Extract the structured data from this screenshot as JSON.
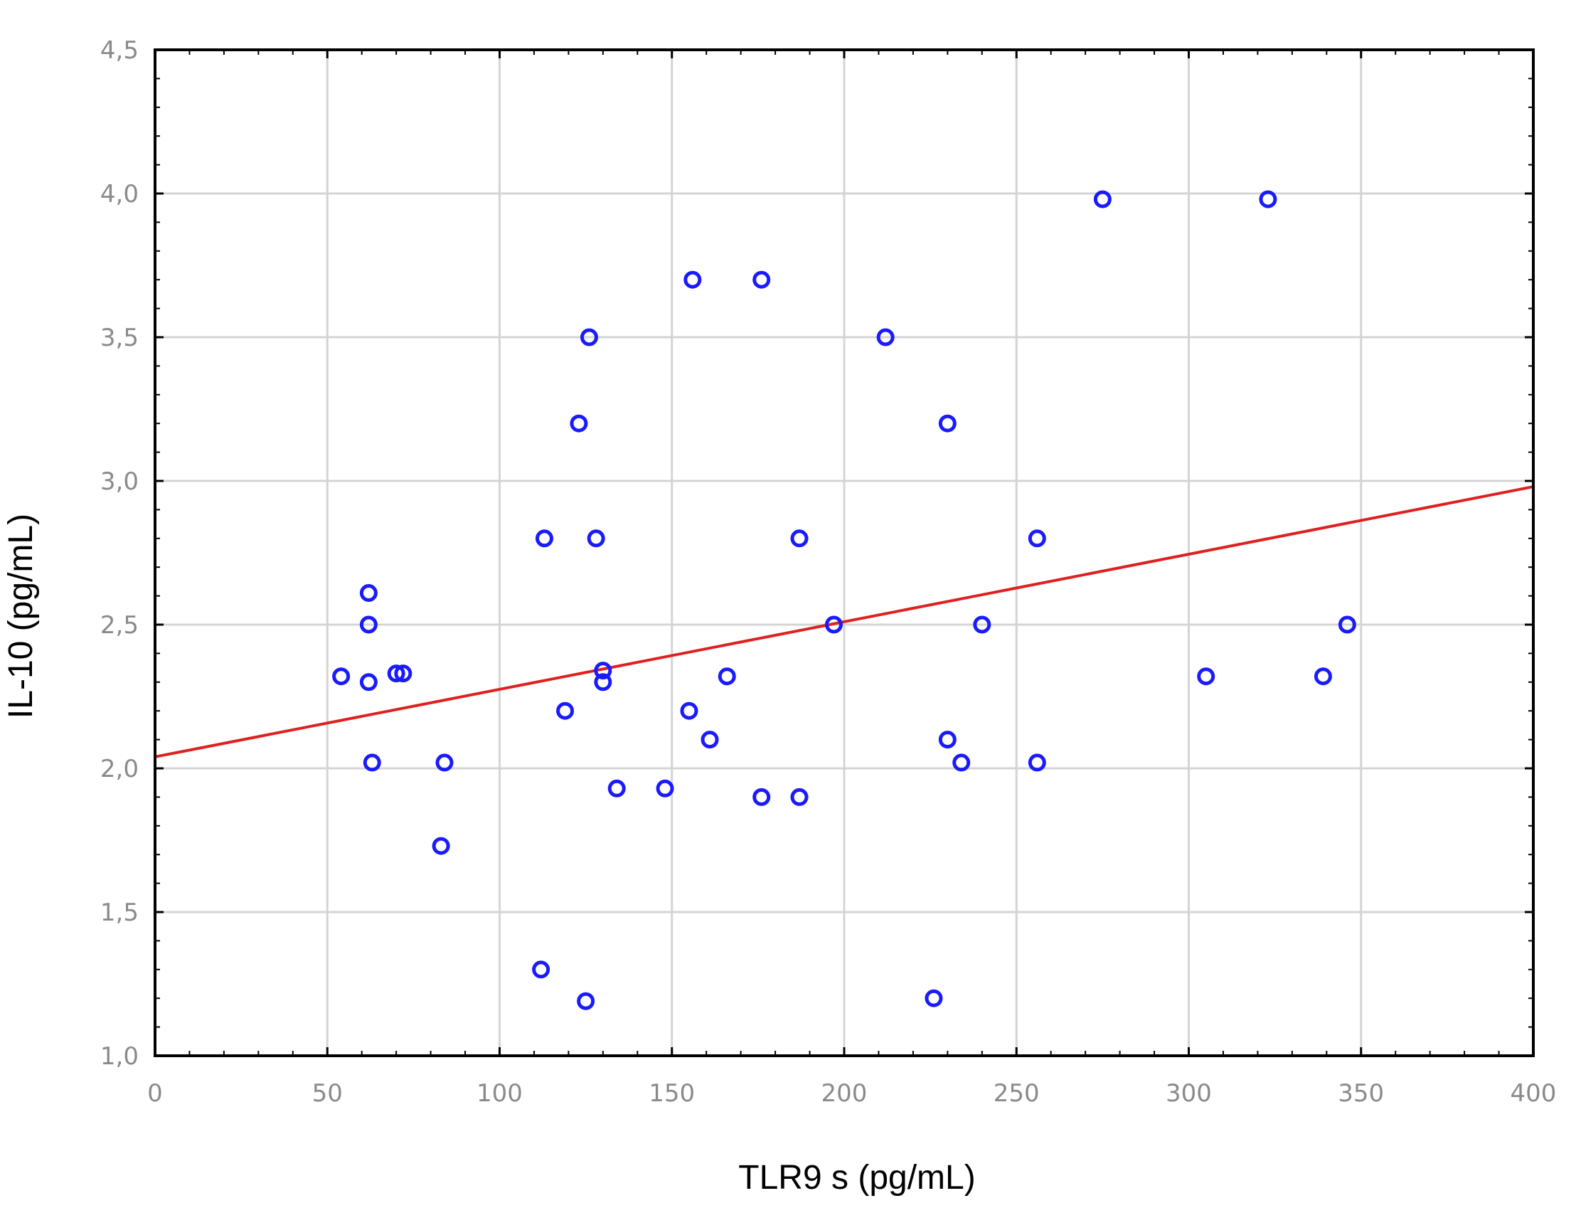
{
  "chart_data": {
    "type": "scatter",
    "xlabel": "TLR9 s (pg/mL)",
    "ylabel": "IL-10 (pg/mL)",
    "xlim": [
      0,
      400
    ],
    "ylim": [
      1.0,
      4.5
    ],
    "x_ticks": [
      0,
      50,
      100,
      150,
      200,
      250,
      300,
      350,
      400
    ],
    "x_tick_labels": [
      "0",
      "50",
      "100",
      "150",
      "200",
      "250",
      "300",
      "350",
      "400"
    ],
    "y_ticks": [
      1.0,
      1.5,
      2.0,
      2.5,
      3.0,
      3.5,
      4.0,
      4.5
    ],
    "y_tick_labels": [
      "1,0",
      "1,5",
      "2,0",
      "2,5",
      "3,0",
      "3,5",
      "4,0",
      "4,5"
    ],
    "grid": true,
    "marker_color": "#1a1aff",
    "line_color": "#e02020",
    "points": [
      {
        "x": 54,
        "y": 2.32
      },
      {
        "x": 62,
        "y": 2.61
      },
      {
        "x": 62,
        "y": 2.5
      },
      {
        "x": 62,
        "y": 2.3
      },
      {
        "x": 63,
        "y": 2.02
      },
      {
        "x": 70,
        "y": 2.33
      },
      {
        "x": 72,
        "y": 2.33
      },
      {
        "x": 83,
        "y": 1.73
      },
      {
        "x": 84,
        "y": 2.02
      },
      {
        "x": 112,
        "y": 1.3
      },
      {
        "x": 113,
        "y": 2.8
      },
      {
        "x": 119,
        "y": 2.2
      },
      {
        "x": 123,
        "y": 3.2
      },
      {
        "x": 125,
        "y": 1.19
      },
      {
        "x": 126,
        "y": 3.5
      },
      {
        "x": 128,
        "y": 2.8
      },
      {
        "x": 130,
        "y": 2.3
      },
      {
        "x": 130,
        "y": 2.34
      },
      {
        "x": 134,
        "y": 1.93
      },
      {
        "x": 148,
        "y": 1.93
      },
      {
        "x": 155,
        "y": 2.2
      },
      {
        "x": 156,
        "y": 3.7
      },
      {
        "x": 161,
        "y": 2.1
      },
      {
        "x": 166,
        "y": 2.32
      },
      {
        "x": 176,
        "y": 1.9
      },
      {
        "x": 176,
        "y": 3.7
      },
      {
        "x": 187,
        "y": 2.8
      },
      {
        "x": 187,
        "y": 1.9
      },
      {
        "x": 197,
        "y": 2.5
      },
      {
        "x": 212,
        "y": 3.5
      },
      {
        "x": 226,
        "y": 1.2
      },
      {
        "x": 230,
        "y": 3.2
      },
      {
        "x": 230,
        "y": 2.1
      },
      {
        "x": 234,
        "y": 2.02
      },
      {
        "x": 240,
        "y": 2.5
      },
      {
        "x": 256,
        "y": 2.8
      },
      {
        "x": 256,
        "y": 2.02
      },
      {
        "x": 275,
        "y": 3.98
      },
      {
        "x": 305,
        "y": 2.32
      },
      {
        "x": 323,
        "y": 3.98
      },
      {
        "x": 339,
        "y": 2.32
      },
      {
        "x": 346,
        "y": 2.5
      }
    ],
    "regression": {
      "x": [
        0,
        400
      ],
      "y": [
        2.04,
        2.98
      ]
    }
  }
}
